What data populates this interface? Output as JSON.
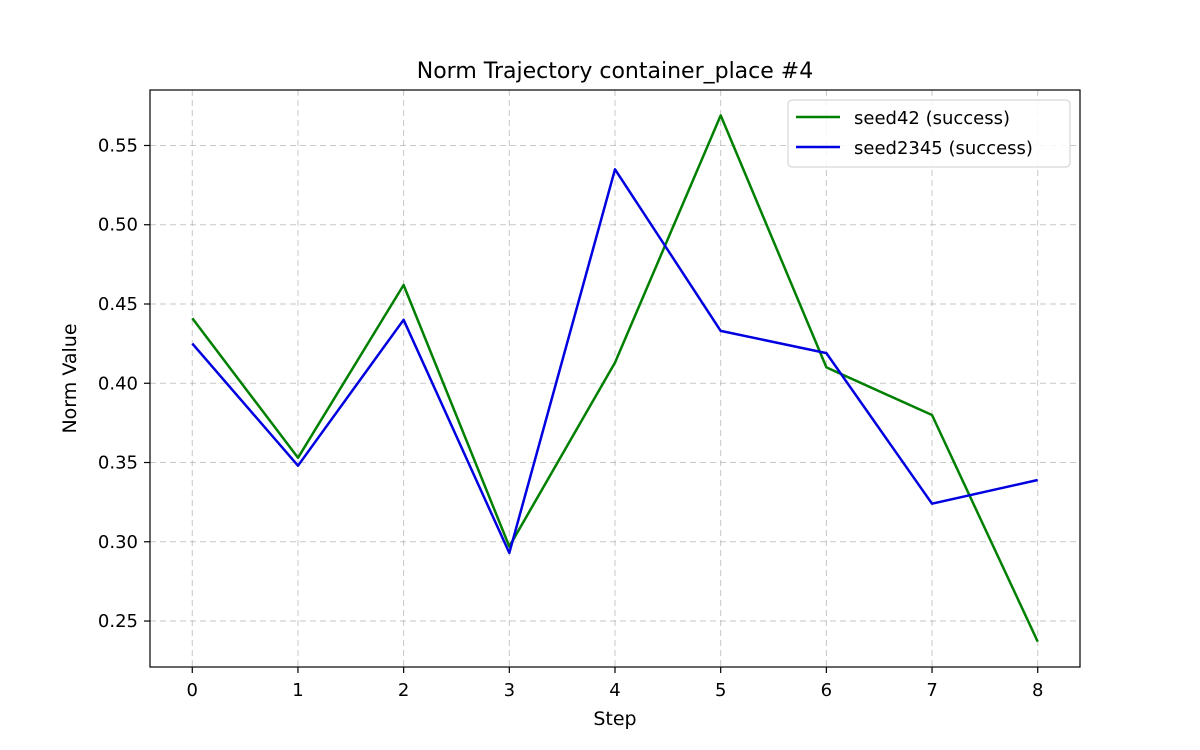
{
  "chart_data": {
    "type": "line",
    "title": "Norm Trajectory container_place #4",
    "xlabel": "Step",
    "ylabel": "Norm Value",
    "x": [
      0,
      1,
      2,
      3,
      4,
      5,
      6,
      7,
      8
    ],
    "xlim": [
      -0.4,
      8.4
    ],
    "ylim": [
      0.221,
      0.585
    ],
    "xticks": [
      0,
      1,
      2,
      3,
      4,
      5,
      6,
      7,
      8
    ],
    "yticks": [
      0.25,
      0.3,
      0.35,
      0.4,
      0.45,
      0.5,
      0.55
    ],
    "ytick_labels": [
      "0.25",
      "0.30",
      "0.35",
      "0.40",
      "0.45",
      "0.50",
      "0.55"
    ],
    "grid": true,
    "legend_position": "top-right",
    "series": [
      {
        "name": "seed42 (success)",
        "color": "#008000",
        "values": [
          0.441,
          0.353,
          0.462,
          0.297,
          0.413,
          0.569,
          0.41,
          0.38,
          0.237
        ]
      },
      {
        "name": "seed2345 (success)",
        "color": "#0000e0",
        "values": [
          0.425,
          0.348,
          0.44,
          0.293,
          0.535,
          0.433,
          0.419,
          0.324,
          0.339
        ]
      }
    ]
  }
}
